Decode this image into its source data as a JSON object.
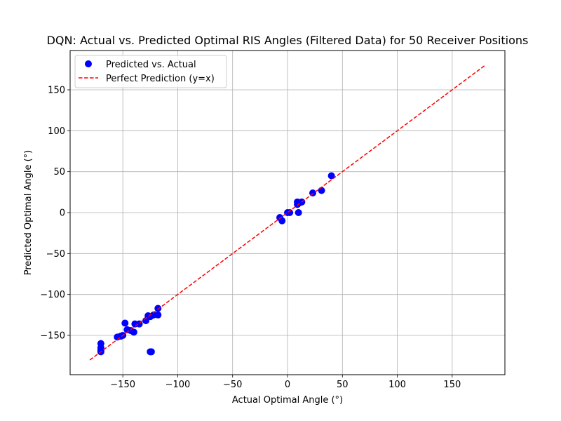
{
  "chart_data": {
    "type": "scatter",
    "title": "DQN: Actual vs. Predicted Optimal RIS Angles (Filtered Data) for 50 Receiver Positions",
    "xlabel": "Actual Optimal Angle (°)",
    "ylabel": "Predicted Optimal Angle (°)",
    "xlim": [
      -198,
      198
    ],
    "ylim": [
      -198,
      198
    ],
    "xticks": [
      -150,
      -100,
      -50,
      0,
      50,
      100,
      150
    ],
    "yticks": [
      -150,
      -100,
      -50,
      0,
      50,
      100,
      150
    ],
    "xtick_labels": [
      "−150",
      "−100",
      "−50",
      "0",
      "50",
      "100",
      "150"
    ],
    "ytick_labels": [
      "−150",
      "−100",
      "−50",
      "0",
      "50",
      "100",
      "150"
    ],
    "grid": true,
    "legend_position": "upper-left",
    "series": [
      {
        "name": "Predicted vs. Actual",
        "kind": "scatter",
        "color": "#0000ff",
        "points": [
          [
            -170,
            -160
          ],
          [
            -170,
            -165
          ],
          [
            -170,
            -170
          ],
          [
            -170,
            -168
          ],
          [
            -155,
            -152
          ],
          [
            -150,
            -150
          ],
          [
            -152,
            -151
          ],
          [
            -148,
            -135
          ],
          [
            -146,
            -143
          ],
          [
            -143,
            -144
          ],
          [
            -140,
            -146
          ],
          [
            -139,
            -136
          ],
          [
            -135,
            -136
          ],
          [
            -129,
            -132
          ],
          [
            -127,
            -126
          ],
          [
            -125,
            -127
          ],
          [
            -125,
            -170
          ],
          [
            -124,
            -170
          ],
          [
            -122,
            -125
          ],
          [
            -118,
            -125
          ],
          [
            -118,
            -117
          ],
          [
            -7,
            -6
          ],
          [
            -5,
            -10
          ],
          [
            0,
            0
          ],
          [
            2,
            0
          ],
          [
            9,
            10
          ],
          [
            9,
            13
          ],
          [
            10,
            0
          ],
          [
            11,
            12
          ],
          [
            13,
            13
          ],
          [
            23,
            24
          ],
          [
            31,
            27
          ],
          [
            40,
            45
          ]
        ]
      },
      {
        "name": "Perfect Prediction (y=x)",
        "kind": "line",
        "style": "dashed",
        "color": "#ff0000",
        "x": [
          -180,
          180
        ],
        "y": [
          -180,
          180
        ]
      }
    ]
  }
}
